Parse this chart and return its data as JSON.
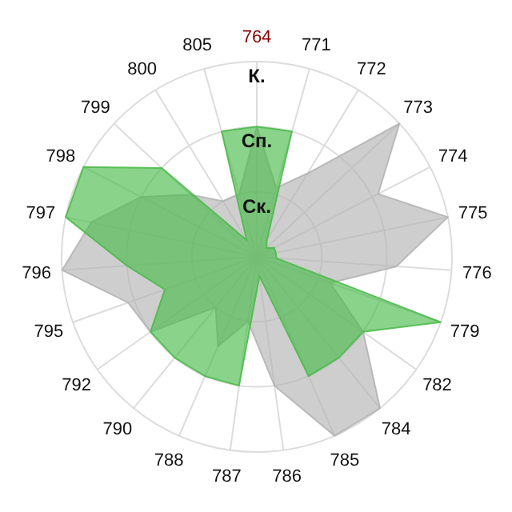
{
  "chart_data": {
    "type": "radar",
    "categories": [
      "764",
      "771",
      "772",
      "773",
      "774",
      "775",
      "776",
      "779",
      "782",
      "784",
      "785",
      "786",
      "787",
      "788",
      "790",
      "792",
      "795",
      "796",
      "797",
      "798",
      "799",
      "800",
      "805"
    ],
    "ylim": [
      0,
      3
    ],
    "yticks": [
      {
        "value": 1,
        "label": "Ск."
      },
      {
        "value": 2,
        "label": "Сп."
      },
      {
        "value": 3,
        "label": "К."
      }
    ],
    "grid": true,
    "series": [
      {
        "color": "#b4b4b4",
        "values": [
          2.0,
          1.1,
          1.5,
          3.0,
          2.1,
          3.0,
          2.15,
          1.2,
          2.0,
          3.0,
          3.0,
          2.0,
          1.0,
          1.5,
          1.0,
          2.0,
          2.1,
          3.0,
          2.6,
          2.0,
          1.4,
          1.0,
          1.0
        ]
      },
      {
        "color": "#4cbb4c",
        "values": [
          2.0,
          2.0,
          0.3,
          0.2,
          0.3,
          0.3,
          0.3,
          3.0,
          2.0,
          2.0,
          2.0,
          0.3,
          2.0,
          2.0,
          2.0,
          2.0,
          1.5,
          2.0,
          3.0,
          3.0,
          2.0,
          0.3,
          2.0
        ]
      }
    ]
  }
}
